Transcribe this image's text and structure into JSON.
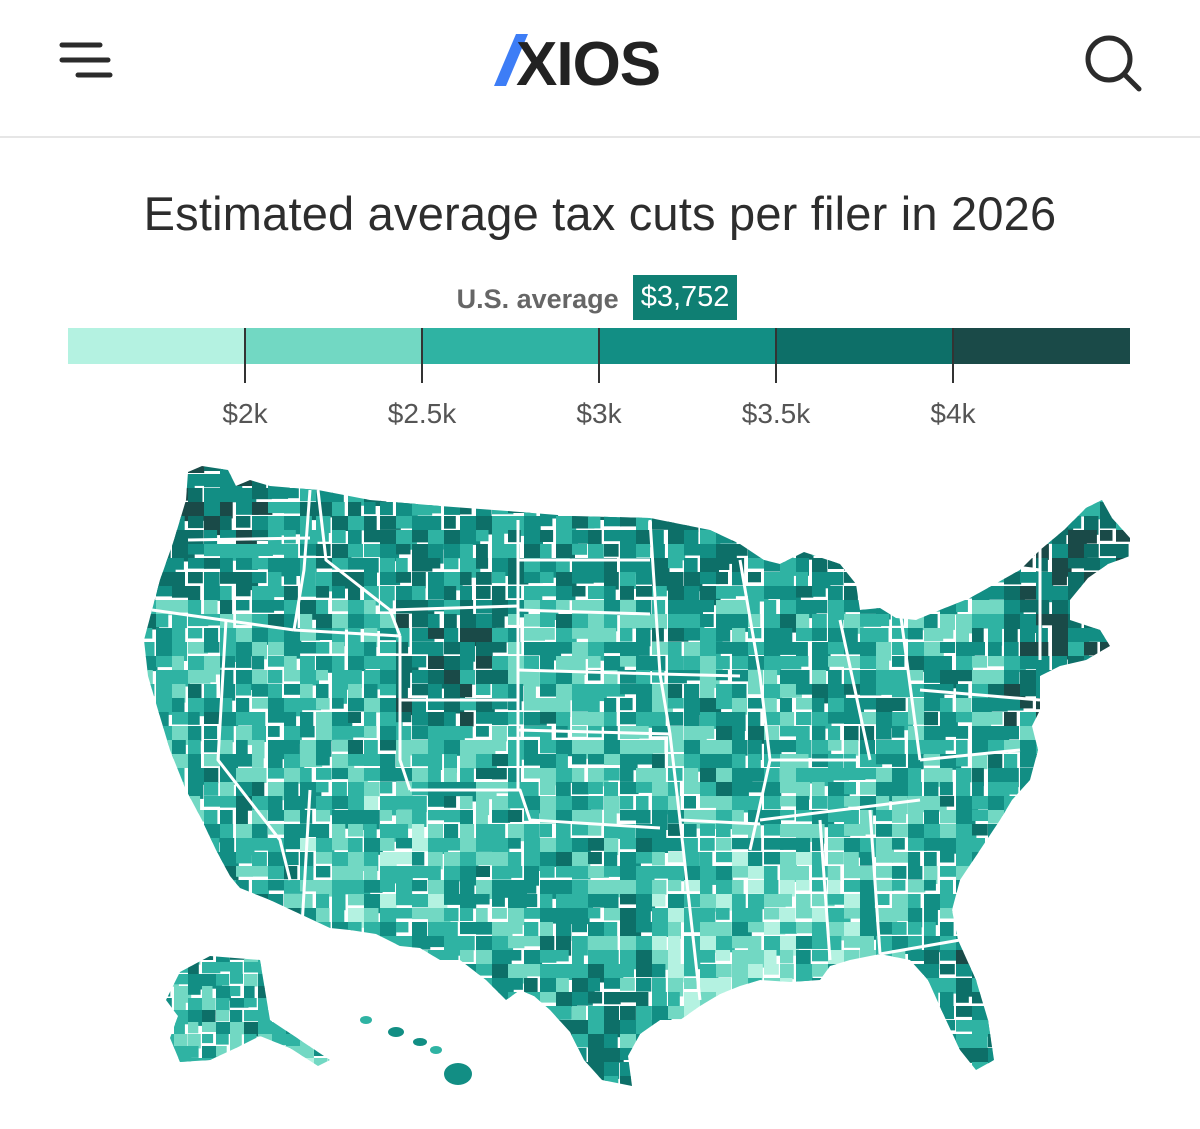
{
  "header": {
    "logo_text": "AXIOS",
    "menu_icon": "menu-icon",
    "search_icon": "search-icon"
  },
  "chart_title": "Estimated average tax cuts per filer in 2026",
  "average": {
    "label": "U.S. average",
    "value": "$3,752"
  },
  "colors": {
    "bin1": "#b4f2e1",
    "bin2": "#72d8c3",
    "bin3": "#2fb3a3",
    "bin4": "#128e84",
    "bin5": "#0d6f68",
    "bin6": "#1a4a48",
    "brand_blue": "#3d7df6",
    "logo_dark": "#222222"
  },
  "chart_data": {
    "type": "choropleth",
    "title": "Estimated average tax cuts per filer in 2026",
    "unit": "USD per filer",
    "geography": "U.S. counties",
    "us_average": 3752,
    "bin_thresholds": [
      2000,
      2500,
      3000,
      3500,
      4000
    ],
    "tick_labels": [
      "$2k",
      "$2.5k",
      "$3k",
      "$3.5k",
      "$4k"
    ],
    "bins": [
      {
        "range": "< $2k",
        "color": "#b4f2e1"
      },
      {
        "range": "$2k–$2.5k",
        "color": "#72d8c3"
      },
      {
        "range": "$2.5k–$3k",
        "color": "#2fb3a3"
      },
      {
        "range": "$3k–$3.5k",
        "color": "#128e84"
      },
      {
        "range": "$3.5k–$4k",
        "color": "#0d6f68"
      },
      {
        "range": "> $4k",
        "color": "#1a4a48"
      }
    ]
  }
}
